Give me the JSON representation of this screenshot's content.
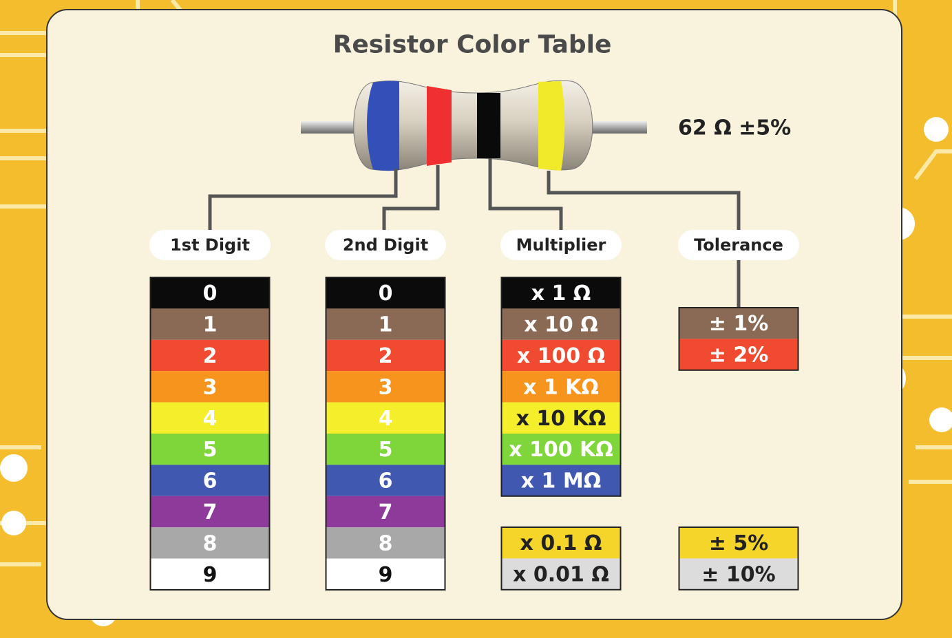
{
  "title": "Resistor Color Table",
  "example": {
    "label": "62 Ω  ±5%"
  },
  "columns": [
    {
      "header": "1st Digit",
      "groups": [
        [
          {
            "text": "0",
            "color": "#0b0b0b",
            "text_color": "#ffffff"
          },
          {
            "text": "1",
            "color": "#8a6a55",
            "text_color": "#ffffff"
          },
          {
            "text": "2",
            "color": "#f04b30",
            "text_color": "#ffffff"
          },
          {
            "text": "3",
            "color": "#f7941d",
            "text_color": "#ffffff"
          },
          {
            "text": "4",
            "color": "#f5ee2a",
            "text_color": "#ffffff"
          },
          {
            "text": "5",
            "color": "#7ed63a",
            "text_color": "#ffffff"
          },
          {
            "text": "6",
            "color": "#4058b0",
            "text_color": "#ffffff"
          },
          {
            "text": "7",
            "color": "#8e3a9a",
            "text_color": "#ffffff"
          },
          {
            "text": "8",
            "color": "#a8a8a8",
            "text_color": "#ffffff"
          },
          {
            "text": "9",
            "color": "#ffffff",
            "text_color": "#111111"
          }
        ]
      ]
    },
    {
      "header": "2nd Digit",
      "groups": [
        [
          {
            "text": "0",
            "color": "#0b0b0b",
            "text_color": "#ffffff"
          },
          {
            "text": "1",
            "color": "#8a6a55",
            "text_color": "#ffffff"
          },
          {
            "text": "2",
            "color": "#f04b30",
            "text_color": "#ffffff"
          },
          {
            "text": "3",
            "color": "#f7941d",
            "text_color": "#ffffff"
          },
          {
            "text": "4",
            "color": "#f5ee2a",
            "text_color": "#ffffff"
          },
          {
            "text": "5",
            "color": "#7ed63a",
            "text_color": "#ffffff"
          },
          {
            "text": "6",
            "color": "#4058b0",
            "text_color": "#ffffff"
          },
          {
            "text": "7",
            "color": "#8e3a9a",
            "text_color": "#ffffff"
          },
          {
            "text": "8",
            "color": "#a8a8a8",
            "text_color": "#ffffff"
          },
          {
            "text": "9",
            "color": "#ffffff",
            "text_color": "#111111"
          }
        ]
      ]
    },
    {
      "header": "Multiplier",
      "groups": [
        [
          {
            "text": "x 1 Ω",
            "color": "#0b0b0b",
            "text_color": "#ffffff"
          },
          {
            "text": "x 10 Ω",
            "color": "#8a6a55",
            "text_color": "#ffffff"
          },
          {
            "text": "x 100 Ω",
            "color": "#f04b30",
            "text_color": "#ffffff"
          },
          {
            "text": "x 1 KΩ",
            "color": "#f7941d",
            "text_color": "#ffffff"
          },
          {
            "text": "x 10 KΩ",
            "color": "#f5ee2a",
            "text_color": "#222222"
          },
          {
            "text": "x 100 KΩ",
            "color": "#7ed63a",
            "text_color": "#ffffff"
          },
          {
            "text": "x 1 MΩ",
            "color": "#4058b0",
            "text_color": "#ffffff"
          }
        ],
        [
          {
            "text": "x 0.1 Ω",
            "color": "#f5d52a",
            "text_color": "#222222"
          },
          {
            "text": "x 0.01 Ω",
            "color": "#dcdcdc",
            "text_color": "#222222"
          }
        ]
      ]
    },
    {
      "header": "Tolerance",
      "groups": [
        [
          {
            "text": "± 1%",
            "color": "#8a6a55",
            "text_color": "#ffffff"
          },
          {
            "text": "± 2%",
            "color": "#f04b30",
            "text_color": "#ffffff"
          }
        ],
        [
          {
            "text": "± 5%",
            "color": "#f5d52a",
            "text_color": "#222222"
          },
          {
            "text": "± 10%",
            "color": "#dcdcdc",
            "text_color": "#222222"
          }
        ]
      ]
    }
  ]
}
